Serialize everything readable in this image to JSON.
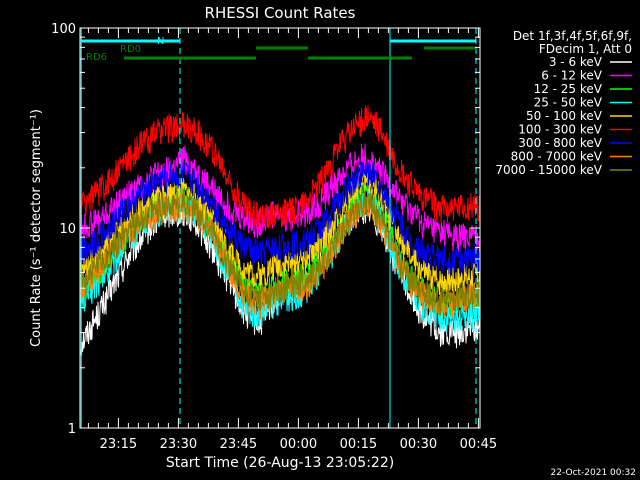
{
  "chart_data": {
    "type": "line",
    "title": "RHESSI Count Rates",
    "xlabel": "Start Time (26-Aug-13 23:05:22)",
    "ylabel": "Count Rate (s⁻¹ detector segment⁻¹)",
    "ylog": true,
    "ylim": [
      1,
      100
    ],
    "xlim_minutes": [
      0,
      100
    ],
    "x_ticks": [
      {
        "label": "23:15",
        "min": 9.6
      },
      {
        "label": "23:30",
        "min": 24.6
      },
      {
        "label": "23:45",
        "min": 39.6
      },
      {
        "label": "00:00",
        "min": 54.6
      },
      {
        "label": "00:15",
        "min": 69.6
      },
      {
        "label": "00:30",
        "min": 84.6
      },
      {
        "label": "00:45",
        "min": 99.6
      }
    ],
    "y_ticks": [
      {
        "label": "1",
        "value": 1
      },
      {
        "label": "10",
        "value": 10
      },
      {
        "label": "100",
        "value": 100
      }
    ],
    "legend_position": "right",
    "legend_header": [
      "Det 1f,3f,4f,5f,6f,9f,",
      "FDecim 1, Att 0"
    ],
    "series": [
      {
        "name": "3 - 6 keV",
        "color": "#ffffff",
        "points": [
          [
            0,
            2.6
          ],
          [
            6,
            4.2
          ],
          [
            12,
            7.2
          ],
          [
            18,
            10.5
          ],
          [
            22,
            12.0
          ],
          [
            26,
            12.2
          ],
          [
            29,
            10.8
          ],
          [
            33,
            8.0
          ],
          [
            37,
            5.6
          ],
          [
            41,
            3.8
          ],
          [
            45,
            3.3
          ],
          [
            49,
            4.5
          ],
          [
            53,
            5.0
          ],
          [
            57,
            5.6
          ],
          [
            61,
            7.2
          ],
          [
            65,
            9.5
          ],
          [
            69,
            12.0
          ],
          [
            72,
            12.8
          ],
          [
            75,
            10.5
          ],
          [
            78,
            7.5
          ],
          [
            82,
            5.0
          ],
          [
            86,
            3.6
          ],
          [
            90,
            3.0
          ],
          [
            95,
            3.0
          ],
          [
            99,
            3.2
          ]
        ]
      },
      {
        "name": "6 - 12 keV",
        "color": "#ff00ff",
        "points": [
          [
            0,
            10.0
          ],
          [
            5,
            11.0
          ],
          [
            10,
            13.5
          ],
          [
            15,
            16.5
          ],
          [
            20,
            19.0
          ],
          [
            24,
            20.0
          ],
          [
            26,
            22.5
          ],
          [
            28,
            20.0
          ],
          [
            32,
            16.5
          ],
          [
            36,
            13.5
          ],
          [
            40,
            11.5
          ],
          [
            44,
            10.5
          ],
          [
            48,
            12.0
          ],
          [
            52,
            11.5
          ],
          [
            56,
            12.0
          ],
          [
            60,
            13.5
          ],
          [
            64,
            17.0
          ],
          [
            68,
            21.0
          ],
          [
            71,
            23.0
          ],
          [
            74,
            20.5
          ],
          [
            78,
            16.0
          ],
          [
            82,
            12.5
          ],
          [
            86,
            10.5
          ],
          [
            90,
            9.5
          ],
          [
            95,
            9.0
          ],
          [
            99,
            9.0
          ]
        ]
      },
      {
        "name": "12 - 25 keV",
        "color": "#00ff00",
        "points": [
          [
            0,
            4.8
          ],
          [
            6,
            6.5
          ],
          [
            12,
            9.5
          ],
          [
            18,
            12.5
          ],
          [
            22,
            14.0
          ],
          [
            26,
            14.2
          ],
          [
            29,
            13.0
          ],
          [
            33,
            10.0
          ],
          [
            37,
            7.0
          ],
          [
            41,
            5.0
          ],
          [
            45,
            4.6
          ],
          [
            49,
            5.2
          ],
          [
            53,
            5.5
          ],
          [
            57,
            6.0
          ],
          [
            61,
            7.2
          ],
          [
            65,
            10.0
          ],
          [
            69,
            13.8
          ],
          [
            72,
            15.0
          ],
          [
            75,
            12.5
          ],
          [
            78,
            9.0
          ],
          [
            82,
            6.0
          ],
          [
            86,
            4.8
          ],
          [
            90,
            4.2
          ],
          [
            95,
            4.2
          ],
          [
            99,
            4.4
          ]
        ]
      },
      {
        "name": "25 - 50 keV",
        "color": "#00ffff",
        "points": [
          [
            0,
            4.2
          ],
          [
            6,
            5.8
          ],
          [
            12,
            8.8
          ],
          [
            18,
            11.5
          ],
          [
            22,
            13.0
          ],
          [
            26,
            13.0
          ],
          [
            29,
            12.0
          ],
          [
            33,
            9.0
          ],
          [
            37,
            6.0
          ],
          [
            41,
            4.0
          ],
          [
            45,
            3.7
          ],
          [
            49,
            4.3
          ],
          [
            53,
            4.6
          ],
          [
            57,
            5.0
          ],
          [
            61,
            6.2
          ],
          [
            65,
            9.0
          ],
          [
            69,
            12.8
          ],
          [
            72,
            14.0
          ],
          [
            75,
            11.5
          ],
          [
            78,
            8.0
          ],
          [
            82,
            5.2
          ],
          [
            86,
            4.0
          ],
          [
            90,
            3.6
          ],
          [
            95,
            3.6
          ],
          [
            99,
            3.8
          ]
        ]
      },
      {
        "name": "50 - 100 keV",
        "color": "#ffd700",
        "points": [
          [
            0,
            6.0
          ],
          [
            6,
            7.8
          ],
          [
            12,
            11.0
          ],
          [
            18,
            13.5
          ],
          [
            22,
            15.0
          ],
          [
            26,
            15.5
          ],
          [
            29,
            14.0
          ],
          [
            33,
            11.0
          ],
          [
            37,
            8.0
          ],
          [
            41,
            6.2
          ],
          [
            45,
            5.8
          ],
          [
            49,
            6.6
          ],
          [
            53,
            6.8
          ],
          [
            57,
            7.3
          ],
          [
            61,
            8.8
          ],
          [
            65,
            12.0
          ],
          [
            69,
            16.0
          ],
          [
            72,
            17.5
          ],
          [
            75,
            14.5
          ],
          [
            78,
            10.5
          ],
          [
            82,
            7.5
          ],
          [
            86,
            6.0
          ],
          [
            90,
            5.5
          ],
          [
            95,
            5.6
          ],
          [
            99,
            5.8
          ]
        ]
      },
      {
        "name": "100 - 300 keV",
        "color": "#ff0000",
        "points": [
          [
            0,
            13.0
          ],
          [
            5,
            15.5
          ],
          [
            10,
            20.0
          ],
          [
            15,
            26.0
          ],
          [
            20,
            31.0
          ],
          [
            25,
            33.0
          ],
          [
            29,
            31.0
          ],
          [
            33,
            25.0
          ],
          [
            37,
            17.5
          ],
          [
            41,
            13.0
          ],
          [
            45,
            11.5
          ],
          [
            49,
            12.0
          ],
          [
            53,
            12.2
          ],
          [
            57,
            14.0
          ],
          [
            61,
            18.0
          ],
          [
            65,
            26.0
          ],
          [
            69,
            33.0
          ],
          [
            72,
            36.0
          ],
          [
            75,
            31.0
          ],
          [
            78,
            23.0
          ],
          [
            82,
            17.0
          ],
          [
            86,
            14.0
          ],
          [
            90,
            12.8
          ],
          [
            95,
            12.5
          ],
          [
            99,
            13.0
          ]
        ]
      },
      {
        "name": "300 - 800 keV",
        "color": "#0000ff",
        "points": [
          [
            0,
            7.5
          ],
          [
            6,
            9.5
          ],
          [
            12,
            13.0
          ],
          [
            18,
            16.5
          ],
          [
            22,
            18.0
          ],
          [
            26,
            18.5
          ],
          [
            29,
            17.0
          ],
          [
            33,
            13.5
          ],
          [
            37,
            10.0
          ],
          [
            41,
            8.0
          ],
          [
            45,
            7.5
          ],
          [
            49,
            8.0
          ],
          [
            53,
            8.2
          ],
          [
            57,
            8.8
          ],
          [
            61,
            10.5
          ],
          [
            65,
            14.0
          ],
          [
            69,
            18.0
          ],
          [
            72,
            19.5
          ],
          [
            75,
            16.5
          ],
          [
            78,
            12.5
          ],
          [
            82,
            9.0
          ],
          [
            86,
            7.5
          ],
          [
            90,
            7.0
          ],
          [
            95,
            7.0
          ],
          [
            99,
            7.2
          ]
        ]
      },
      {
        "name": "800 - 7000 keV",
        "color": "#ff8000",
        "points": [
          [
            0,
            5.0
          ],
          [
            6,
            6.8
          ],
          [
            12,
            9.5
          ],
          [
            18,
            11.5
          ],
          [
            22,
            12.8
          ],
          [
            26,
            13.0
          ],
          [
            29,
            12.0
          ],
          [
            33,
            9.5
          ],
          [
            37,
            6.5
          ],
          [
            41,
            4.5
          ],
          [
            45,
            4.2
          ],
          [
            49,
            4.8
          ],
          [
            53,
            5.0
          ],
          [
            57,
            5.3
          ],
          [
            61,
            6.6
          ],
          [
            65,
            9.2
          ],
          [
            69,
            12.0
          ],
          [
            72,
            13.0
          ],
          [
            75,
            10.8
          ],
          [
            78,
            8.0
          ],
          [
            82,
            5.6
          ],
          [
            86,
            4.6
          ],
          [
            90,
            4.2
          ],
          [
            95,
            4.4
          ],
          [
            99,
            4.6
          ]
        ]
      },
      {
        "name": "7000 - 15000 keV",
        "color": "#808000",
        "points": [
          [
            0,
            5.2
          ],
          [
            6,
            7.0
          ],
          [
            12,
            10.0
          ],
          [
            18,
            12.0
          ],
          [
            22,
            13.2
          ],
          [
            26,
            13.5
          ],
          [
            29,
            12.5
          ],
          [
            33,
            9.8
          ],
          [
            37,
            6.8
          ],
          [
            41,
            4.8
          ],
          [
            45,
            4.4
          ],
          [
            49,
            5.0
          ],
          [
            53,
            5.2
          ],
          [
            57,
            5.5
          ],
          [
            61,
            6.8
          ],
          [
            65,
            9.5
          ],
          [
            69,
            12.5
          ],
          [
            72,
            13.5
          ],
          [
            75,
            11.2
          ],
          [
            78,
            8.2
          ],
          [
            82,
            5.8
          ],
          [
            86,
            4.8
          ],
          [
            90,
            4.4
          ],
          [
            95,
            4.6
          ],
          [
            99,
            4.8
          ]
        ]
      }
    ],
    "annotations": {
      "vertical_lines": [
        {
          "min": 0.3,
          "style": "solid"
        },
        {
          "min": 25.0,
          "style": "dashed"
        },
        {
          "min": 77.5,
          "style": "solid"
        },
        {
          "min": 99.0,
          "style": "dashed"
        }
      ],
      "intervals": [
        {
          "label": "N",
          "color": "#00ffff",
          "row": 0,
          "segments": [
            [
              0.3,
              25.0
            ],
            [
              77.5,
              99.0
            ]
          ]
        },
        {
          "label": "RD0",
          "color": "#008000",
          "row": 1,
          "segments": [
            [
              44.0,
              57.0
            ],
            [
              86.0,
              99.0
            ]
          ]
        },
        {
          "label": "RD6",
          "color": "#008000",
          "row": 2,
          "segments": [
            [
              11.0,
              44.0
            ],
            [
              57.0,
              83.0
            ]
          ]
        }
      ]
    },
    "timestamp": "22-Oct-2021 00:32"
  }
}
